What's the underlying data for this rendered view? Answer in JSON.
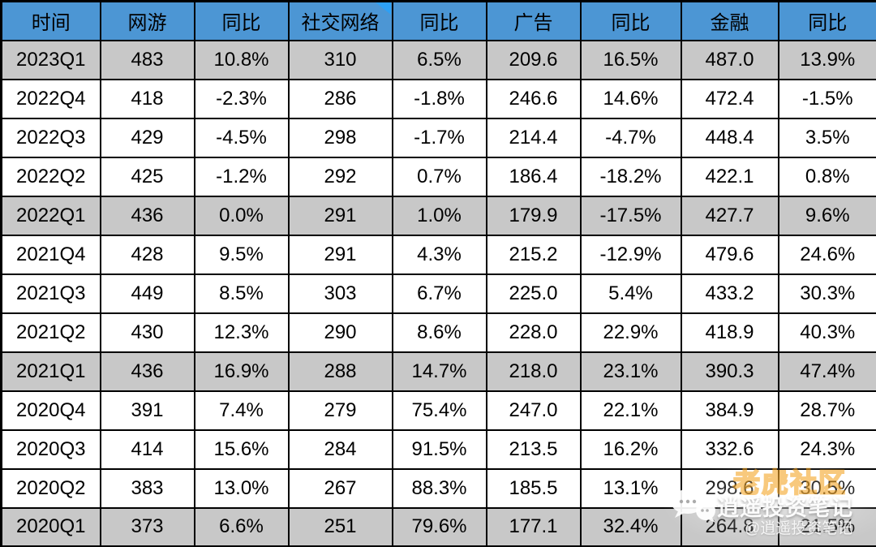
{
  "chart_data": {
    "type": "table",
    "title": "",
    "columns": [
      "时间",
      "网游",
      "同比",
      "社交网络",
      "同比",
      "广告",
      "同比",
      "金融",
      "同比"
    ],
    "rows": [
      [
        "2023Q1",
        "483",
        "10.8%",
        "310",
        "6.5%",
        "209.6",
        "16.5%",
        "487.0",
        "13.9%"
      ],
      [
        "2022Q4",
        "418",
        "-2.3%",
        "286",
        "-1.8%",
        "246.6",
        "14.6%",
        "472.4",
        "-1.5%"
      ],
      [
        "2022Q3",
        "429",
        "-4.5%",
        "298",
        "-1.7%",
        "214.4",
        "-4.7%",
        "448.4",
        "3.5%"
      ],
      [
        "2022Q2",
        "425",
        "-1.2%",
        "292",
        "0.7%",
        "186.4",
        "-18.2%",
        "422.1",
        "0.8%"
      ],
      [
        "2022Q1",
        "436",
        "0.0%",
        "291",
        "1.0%",
        "179.9",
        "-17.5%",
        "427.7",
        "9.6%"
      ],
      [
        "2021Q4",
        "428",
        "9.5%",
        "291",
        "4.3%",
        "215.2",
        "-12.9%",
        "479.6",
        "24.6%"
      ],
      [
        "2021Q3",
        "449",
        "8.5%",
        "303",
        "6.7%",
        "225.0",
        "5.4%",
        "433.2",
        "30.3%"
      ],
      [
        "2021Q2",
        "430",
        "12.3%",
        "290",
        "8.6%",
        "228.0",
        "22.9%",
        "418.9",
        "40.3%"
      ],
      [
        "2021Q1",
        "436",
        "16.9%",
        "288",
        "14.7%",
        "218.0",
        "23.1%",
        "390.3",
        "47.4%"
      ],
      [
        "2020Q4",
        "391",
        "7.4%",
        "279",
        "75.4%",
        "247.0",
        "22.1%",
        "384.9",
        "28.7%"
      ],
      [
        "2020Q3",
        "414",
        "15.6%",
        "284",
        "91.5%",
        "213.5",
        "16.2%",
        "332.6",
        "24.3%"
      ],
      [
        "2020Q2",
        "383",
        "13.0%",
        "267",
        "88.3%",
        "185.5",
        "13.1%",
        "298.6",
        "30.5%"
      ],
      [
        "2020Q1",
        "373",
        "6.6%",
        "251",
        "79.6%",
        "177.1",
        "32.4%",
        "264.8",
        "21.5%"
      ]
    ],
    "highlighted_row_indices": [
      0,
      4,
      8,
      12
    ],
    "corner_flag_column_index": 3,
    "layout": {
      "grid": true,
      "header_fill": "#4c96d4",
      "highlight_fill": "#c8c8c8"
    }
  },
  "colors": {
    "header_bg": "#4c96d4",
    "row_alt_bg": "#c8c8c8",
    "row_bg": "#ffffff",
    "grid": "#000000",
    "corner_flag": "#2da0f5"
  },
  "watermark": {
    "community_label": "老虎社区",
    "brand": "逍遥投资笔记",
    "handle": "@逍遥投资笔记",
    "icon": "chat-bubbles-icon"
  }
}
